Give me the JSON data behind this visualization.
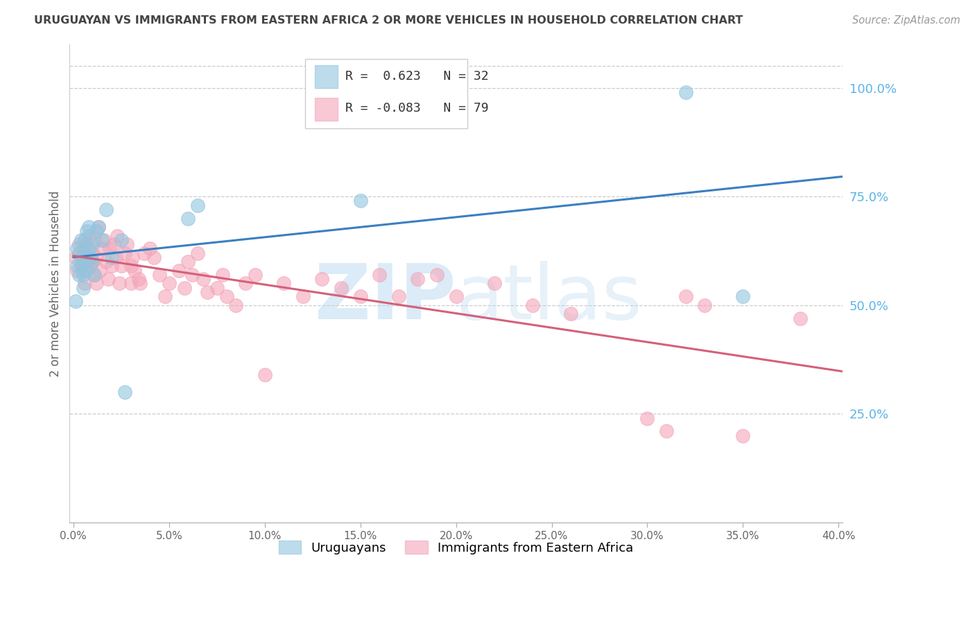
{
  "title": "URUGUAYAN VS IMMIGRANTS FROM EASTERN AFRICA 2 OR MORE VEHICLES IN HOUSEHOLD CORRELATION CHART",
  "source": "Source: ZipAtlas.com",
  "ylabel": "2 or more Vehicles in Household",
  "xlim": [
    -0.002,
    0.402
  ],
  "ylim": [
    0.0,
    1.1
  ],
  "blue_R": 0.623,
  "blue_N": 32,
  "pink_R": -0.083,
  "pink_N": 79,
  "blue_label": "Uruguayans",
  "pink_label": "Immigrants from Eastern Africa",
  "blue_color": "#92c5de",
  "pink_color": "#f4a6ba",
  "blue_line_color": "#3a7fc1",
  "pink_line_color": "#d4607a",
  "watermark_color": "#b8d8f0",
  "background_color": "#ffffff",
  "grid_color": "#cccccc",
  "title_color": "#444444",
  "axis_label_color": "#666666",
  "right_axis_color": "#5ab4e8",
  "blue_x": [
    0.001,
    0.002,
    0.002,
    0.003,
    0.003,
    0.004,
    0.004,
    0.005,
    0.005,
    0.006,
    0.006,
    0.006,
    0.007,
    0.007,
    0.008,
    0.008,
    0.009,
    0.01,
    0.01,
    0.011,
    0.012,
    0.013,
    0.015,
    0.017,
    0.02,
    0.025,
    0.027,
    0.06,
    0.065,
    0.15,
    0.32,
    0.35
  ],
  "blue_y": [
    0.51,
    0.59,
    0.63,
    0.57,
    0.62,
    0.59,
    0.65,
    0.57,
    0.54,
    0.62,
    0.65,
    0.6,
    0.67,
    0.58,
    0.63,
    0.68,
    0.61,
    0.6,
    0.64,
    0.57,
    0.67,
    0.68,
    0.65,
    0.72,
    0.61,
    0.65,
    0.3,
    0.7,
    0.73,
    0.74,
    0.99,
    0.52
  ],
  "pink_x": [
    0.001,
    0.002,
    0.003,
    0.004,
    0.005,
    0.005,
    0.006,
    0.006,
    0.007,
    0.007,
    0.008,
    0.008,
    0.009,
    0.01,
    0.01,
    0.011,
    0.011,
    0.012,
    0.012,
    0.013,
    0.014,
    0.015,
    0.016,
    0.017,
    0.018,
    0.019,
    0.02,
    0.021,
    0.022,
    0.023,
    0.024,
    0.025,
    0.027,
    0.028,
    0.03,
    0.03,
    0.031,
    0.032,
    0.034,
    0.035,
    0.037,
    0.04,
    0.042,
    0.045,
    0.048,
    0.05,
    0.055,
    0.058,
    0.06,
    0.062,
    0.065,
    0.068,
    0.07,
    0.075,
    0.078,
    0.08,
    0.085,
    0.09,
    0.095,
    0.1,
    0.11,
    0.12,
    0.13,
    0.14,
    0.15,
    0.16,
    0.17,
    0.18,
    0.19,
    0.2,
    0.22,
    0.24,
    0.26,
    0.3,
    0.31,
    0.32,
    0.33,
    0.35,
    0.38
  ],
  "pink_y": [
    0.61,
    0.58,
    0.64,
    0.6,
    0.62,
    0.58,
    0.55,
    0.63,
    0.61,
    0.64,
    0.66,
    0.6,
    0.59,
    0.62,
    0.6,
    0.57,
    0.65,
    0.55,
    0.61,
    0.68,
    0.58,
    0.63,
    0.65,
    0.6,
    0.56,
    0.63,
    0.59,
    0.64,
    0.61,
    0.66,
    0.55,
    0.59,
    0.62,
    0.64,
    0.55,
    0.59,
    0.61,
    0.58,
    0.56,
    0.55,
    0.62,
    0.63,
    0.61,
    0.57,
    0.52,
    0.55,
    0.58,
    0.54,
    0.6,
    0.57,
    0.62,
    0.56,
    0.53,
    0.54,
    0.57,
    0.52,
    0.5,
    0.55,
    0.57,
    0.34,
    0.55,
    0.52,
    0.56,
    0.54,
    0.52,
    0.57,
    0.52,
    0.56,
    0.57,
    0.52,
    0.55,
    0.5,
    0.48,
    0.24,
    0.21,
    0.52,
    0.5,
    0.2,
    0.47
  ]
}
